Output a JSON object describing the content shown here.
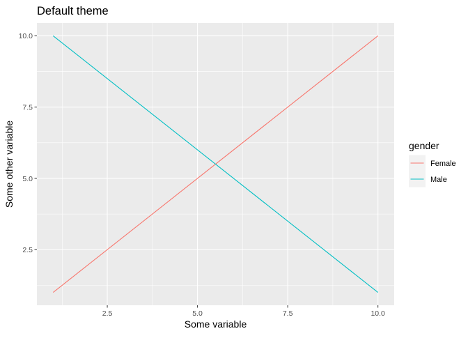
{
  "chart_data": {
    "type": "line",
    "title": "Default theme",
    "xlabel": "Some variable",
    "ylabel": "Some other variable",
    "xlim": [
      0.55,
      10.45
    ],
    "ylim": [
      0.55,
      10.45
    ],
    "x_ticks": [
      2.5,
      5.0,
      7.5,
      10.0
    ],
    "x_tick_labels": [
      "2.5",
      "5.0",
      "7.5",
      "10.0"
    ],
    "y_ticks": [
      2.5,
      5.0,
      7.5,
      10.0
    ],
    "y_tick_labels": [
      "2.5",
      "5.0",
      "7.5",
      "10.0"
    ],
    "grid": true,
    "legend": {
      "title": "gender",
      "placement": "right"
    },
    "series": [
      {
        "name": "Female",
        "color": "#F8766D",
        "x": [
          1,
          10
        ],
        "y": [
          1,
          10
        ]
      },
      {
        "name": "Male",
        "color": "#00BFC4",
        "x": [
          1,
          10
        ],
        "y": [
          10,
          1
        ]
      }
    ]
  }
}
